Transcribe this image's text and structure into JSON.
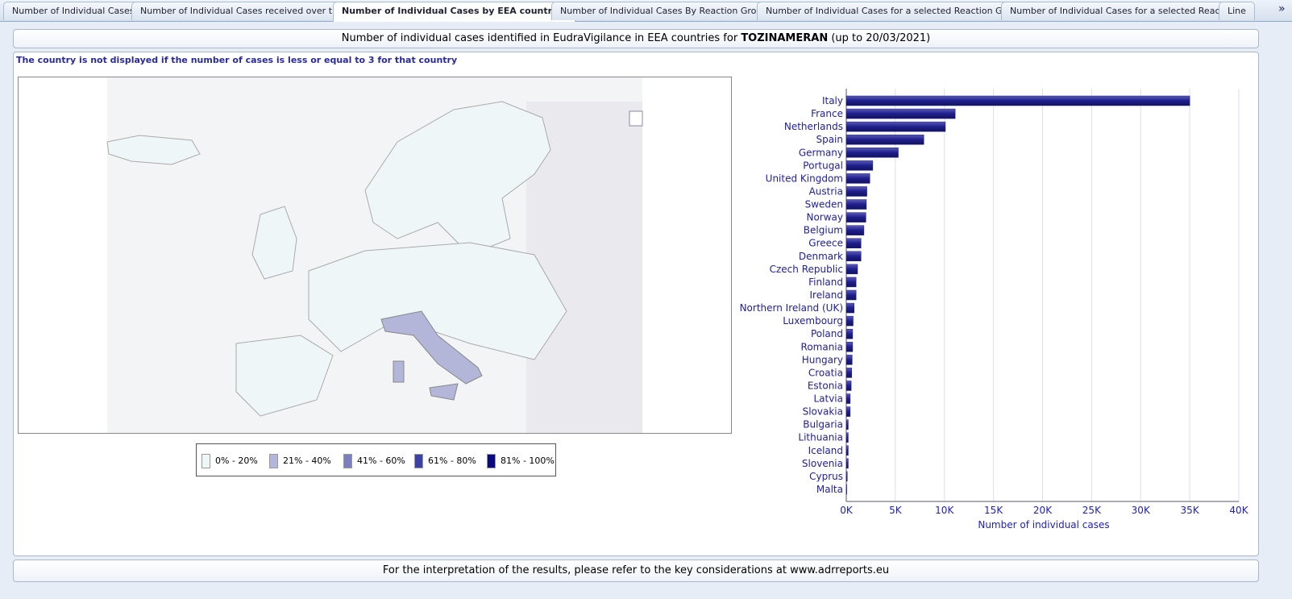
{
  "tabs": [
    "Number of Individual Cases",
    "Number of Individual Cases received over time",
    "Number of Individual Cases by EEA countries",
    "Number of Individual Cases By Reaction Groups",
    "Number of Individual Cases for a selected Reaction Group",
    "Number of Individual Cases for a selected Reaction",
    "Line"
  ],
  "tab_more": "»",
  "header": {
    "title_start": "Number of individual cases identified in EudraVigilance in EEA countries for",
    "title_product": "TOZINAMERAN",
    "title_end": "(up to 20/03/2021)"
  },
  "note": "The country is not displayed if the number of cases is less or equal to 3 for that country",
  "legend": [
    {
      "label": "0% - 20%",
      "color": "#eef6f8"
    },
    {
      "label": "21% - 40%",
      "color": "#b3b6d9"
    },
    {
      "label": "41% - 60%",
      "color": "#7b7fc2"
    },
    {
      "label": "61% - 80%",
      "color": "#3d41a6"
    },
    {
      "label": "81% - 100%",
      "color": "#0b0b80"
    }
  ],
  "footer": "For the interpretation of the results, please refer to the key considerations at www.adrreports.eu",
  "chart_data": {
    "type": "barh",
    "x_label": "Number of individual cases",
    "color": "#1f1f8c",
    "categories": [
      "Italy",
      "France",
      "Netherlands",
      "Spain",
      "Germany",
      "Portugal",
      "United Kingdom",
      "Austria",
      "Sweden",
      "Norway",
      "Belgium",
      "Greece",
      "Denmark",
      "Czech Republic",
      "Finland",
      "Ireland",
      "Northern Ireland (UK)",
      "Luxembourg",
      "Poland",
      "Romania",
      "Hungary",
      "Croatia",
      "Estonia",
      "Latvia",
      "Slovakia",
      "Bulgaria",
      "Lithuania",
      "Iceland",
      "Slovenia",
      "Cyprus",
      "Malta"
    ],
    "values": [
      35000,
      11100,
      10100,
      7900,
      5300,
      2700,
      2400,
      2100,
      2050,
      2000,
      1800,
      1500,
      1500,
      1150,
      1000,
      1000,
      800,
      700,
      650,
      650,
      600,
      550,
      500,
      400,
      400,
      200,
      200,
      200,
      200,
      100,
      50
    ],
    "xlim": [
      0,
      40000
    ],
    "xticks": [
      {
        "value": 0,
        "label": "0K"
      },
      {
        "value": 5000,
        "label": "5K"
      },
      {
        "value": 10000,
        "label": "10K"
      },
      {
        "value": 15000,
        "label": "15K"
      },
      {
        "value": 20000,
        "label": "20K"
      },
      {
        "value": 25000,
        "label": "25K"
      },
      {
        "value": 30000,
        "label": "30K"
      },
      {
        "value": 35000,
        "label": "35K"
      },
      {
        "value": 40000,
        "label": "40K"
      }
    ],
    "grid": true
  }
}
